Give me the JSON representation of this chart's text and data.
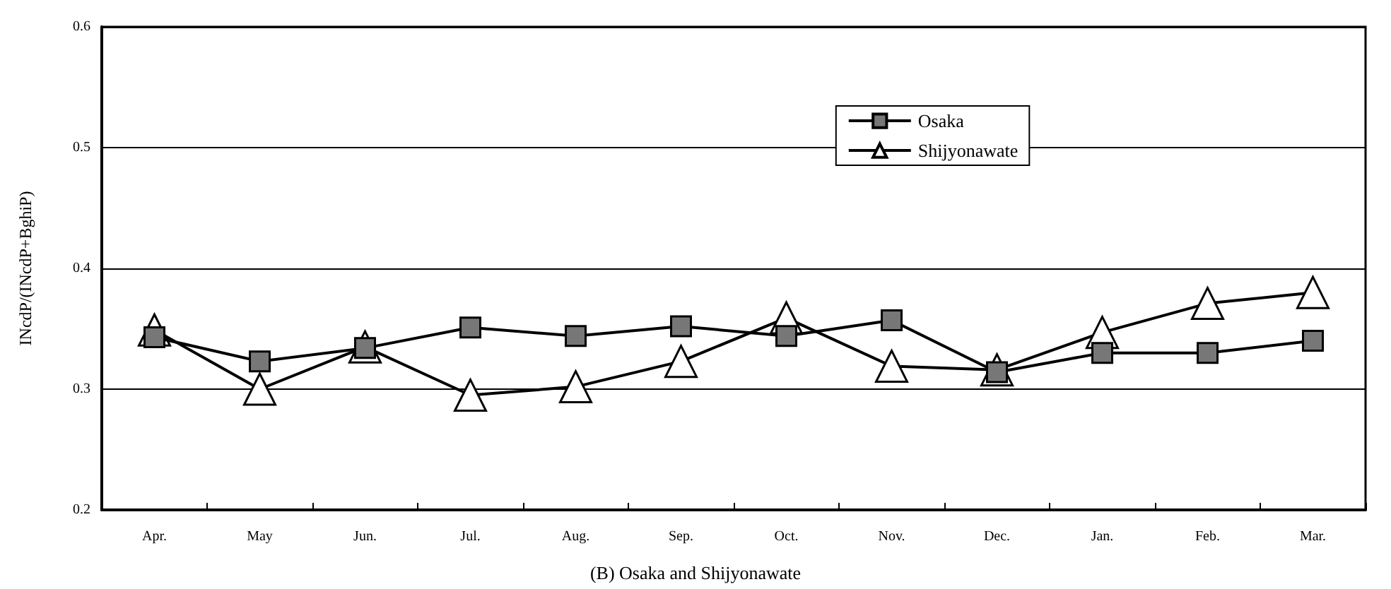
{
  "chart_data": {
    "type": "line",
    "title": "(B) Osaka and Shijyonawate",
    "ylabel": "INcdP/(INcdP+BghiP)",
    "categories": [
      "Apr.",
      "May",
      "Jun.",
      "Jul.",
      "Aug.",
      "Sep.",
      "Oct.",
      "Nov.",
      "Dec.",
      "Jan.",
      "Feb.",
      "Mar."
    ],
    "series": [
      {
        "name": "Osaka",
        "color": "#000000",
        "marker": "square",
        "values": [
          0.343,
          0.323,
          0.334,
          0.351,
          0.344,
          0.352,
          0.344,
          0.357,
          0.314,
          0.33,
          0.33,
          0.34
        ]
      },
      {
        "name": "Shijyonawate",
        "color": "#000000",
        "marker": "triangle",
        "values": [
          0.349,
          0.3,
          0.335,
          0.295,
          0.302,
          0.323,
          0.359,
          0.319,
          0.316,
          0.347,
          0.371,
          0.38
        ]
      }
    ],
    "ylim": [
      0.2,
      0.6
    ],
    "yticks": [
      0.2,
      0.3,
      0.4,
      0.5,
      0.6
    ],
    "grid": "y",
    "legend": "top right",
    "line_style": "solid"
  }
}
